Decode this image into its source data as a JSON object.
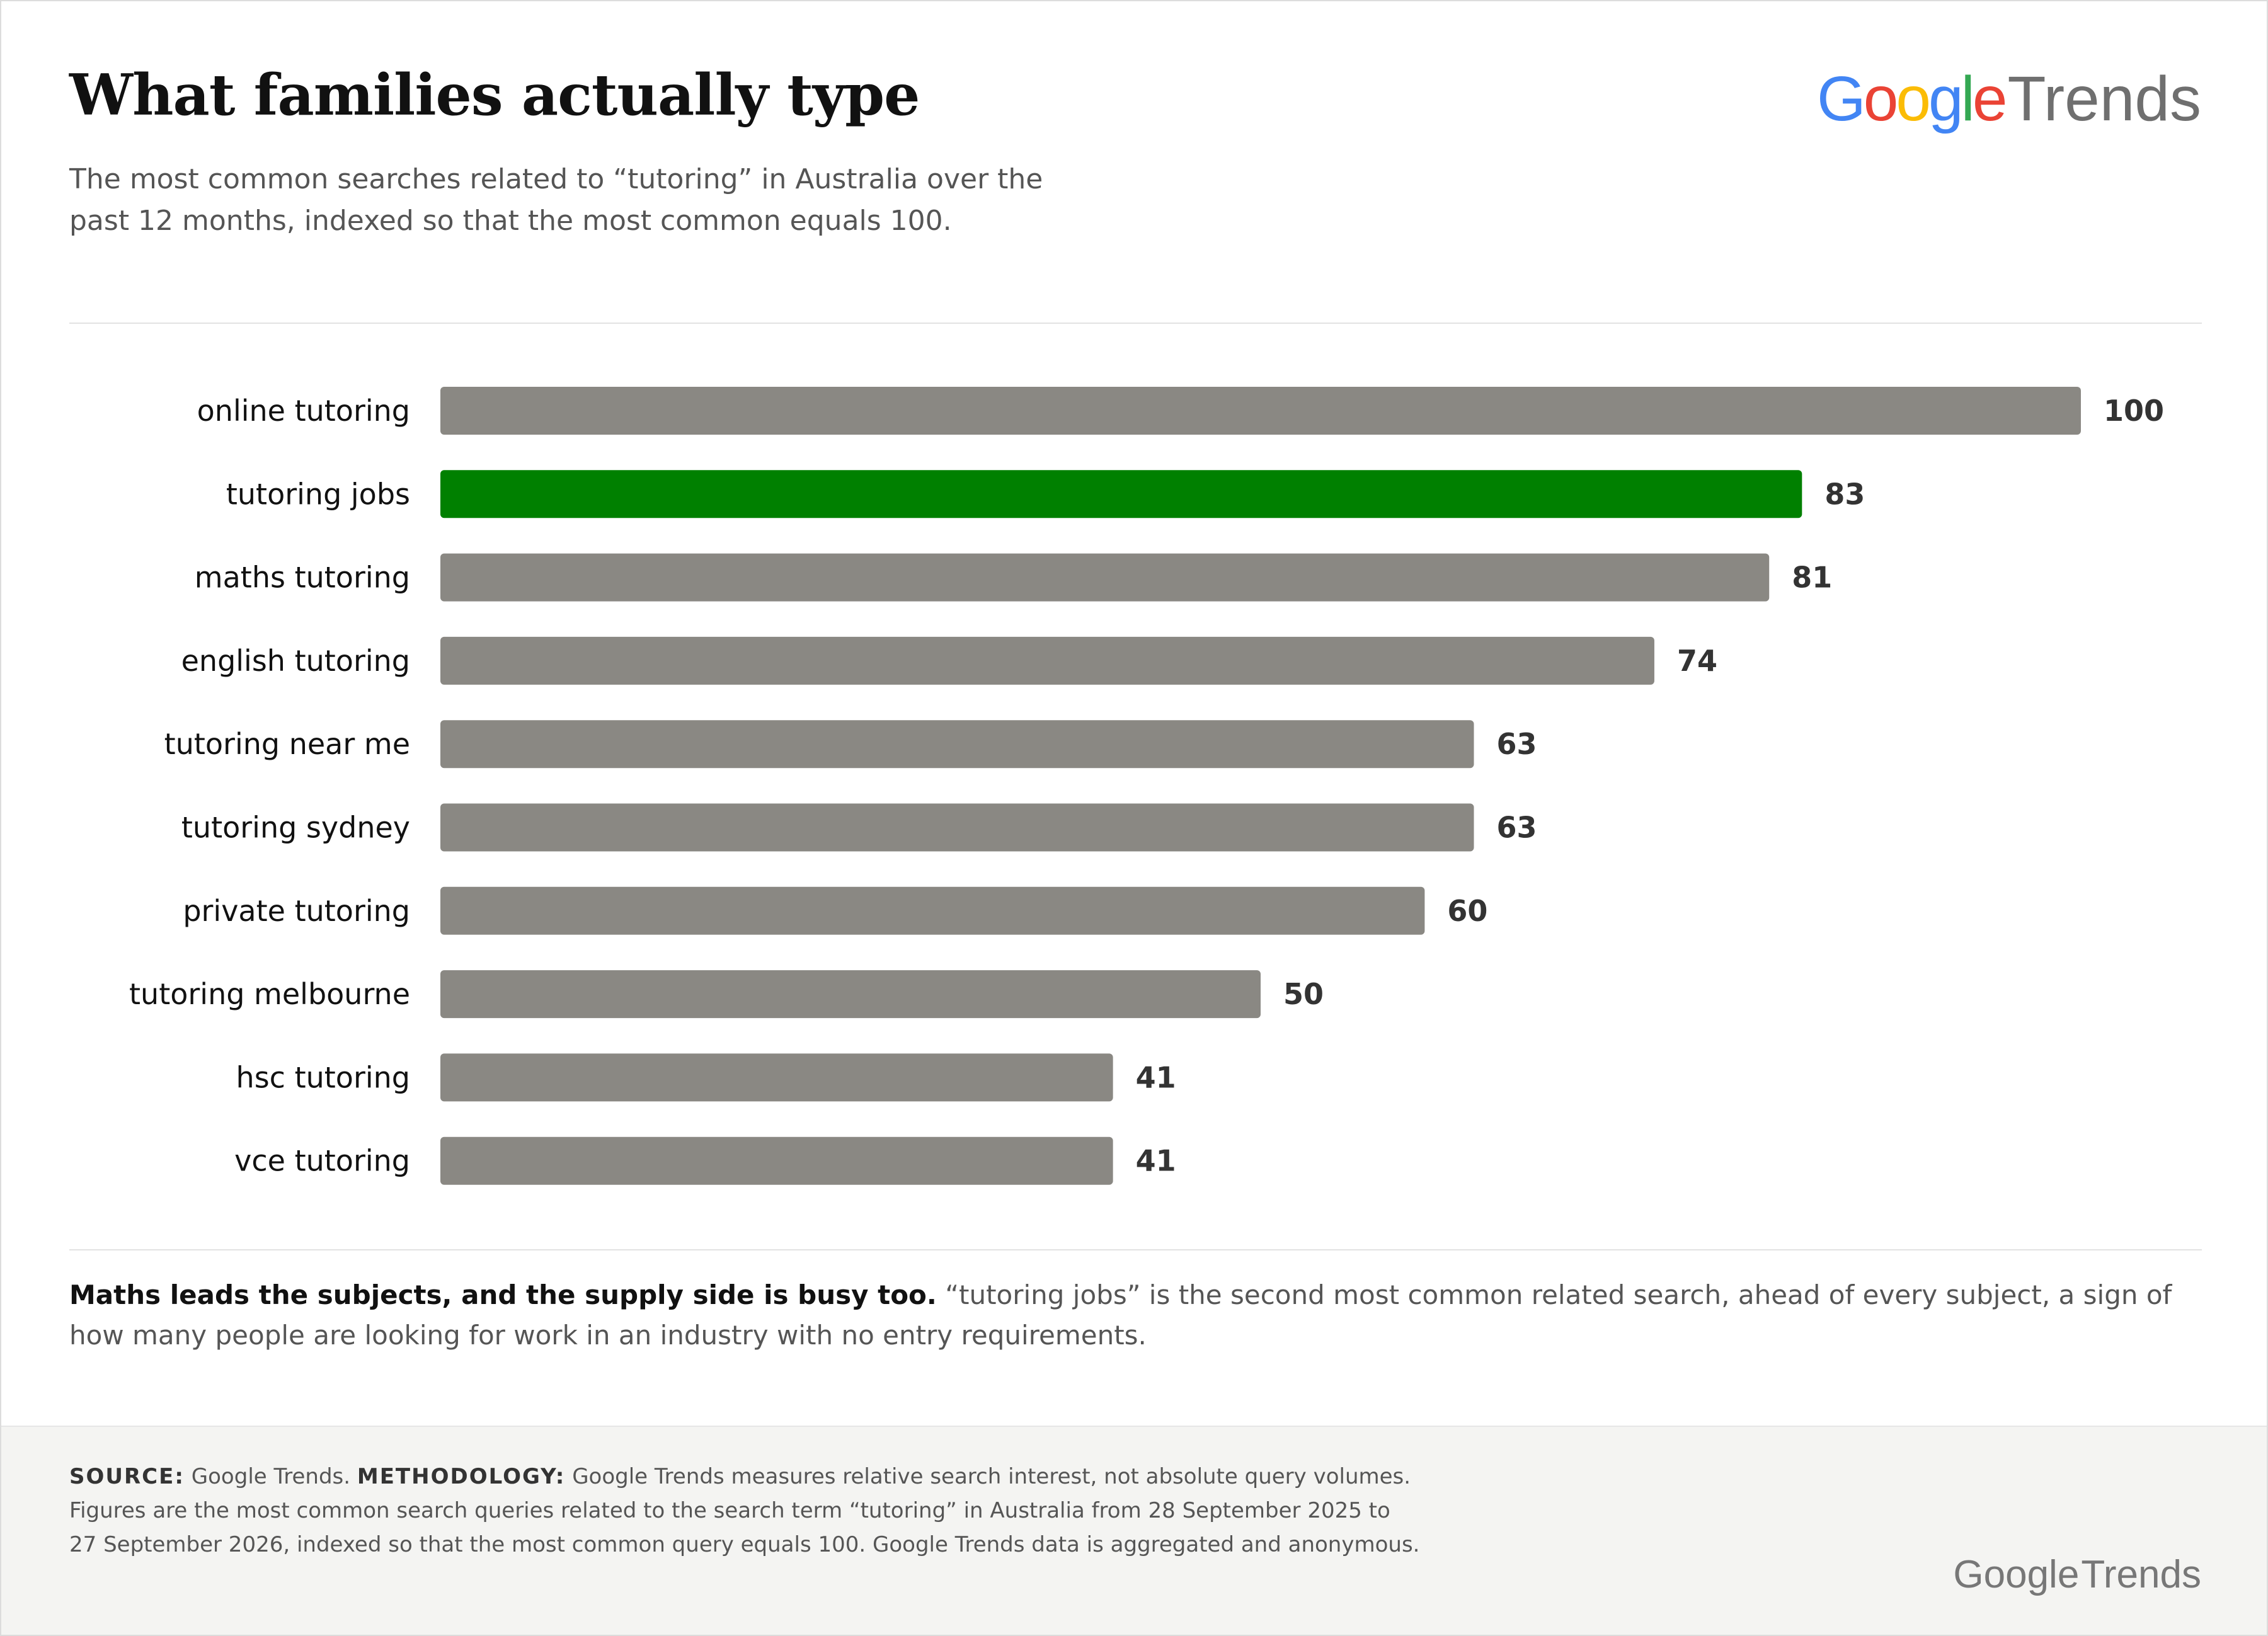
{
  "header": {
    "title": "What families actually type",
    "subtitle": "The most common searches related to “tutoring” in Australia over the past 12 months, indexed so that the most common equals 100.",
    "logo": {
      "word1": "Google",
      "word2": "Trends"
    }
  },
  "finding": {
    "lead": "Maths leads the subjects, and the supply side is busy too.",
    "body": "“tutoring jobs” is the second most common related search, ahead of every subject, a sign of how many people are looking for work in an industry with no entry requirements."
  },
  "footer": {
    "source_label": "SOURCE:",
    "source_text": "Google Trends.",
    "methodology_label": "METHODOLOGY:",
    "methodology_text": "Google Trends measures relative search interest, not absolute query volumes. Figures are the most common search queries related to the search term “tutoring” in Australia from 28 September 2025 to 27 September 2026, indexed so that the most common query equals 100. Google Trends data is aggregated and anonymous.",
    "logo_word1": "Google",
    "logo_word2": "Trends"
  },
  "colors": {
    "bar": "#8a8883",
    "highlight": "#008000",
    "label": "#111111",
    "value": "#333333",
    "google_blue": "#4285F4",
    "google_red": "#EA4335",
    "google_yellow": "#FBBC05",
    "google_green": "#34A853"
  },
  "chart_data": {
    "type": "bar",
    "orientation": "horizontal",
    "categories": [
      "online tutoring",
      "tutoring jobs",
      "maths tutoring",
      "english tutoring",
      "tutoring near me",
      "tutoring sydney",
      "private tutoring",
      "tutoring melbourne",
      "hsc tutoring",
      "vce tutoring"
    ],
    "values": [
      100,
      83,
      81,
      74,
      63,
      63,
      60,
      50,
      41,
      41
    ],
    "highlight": "tutoring jobs",
    "xlim": [
      0,
      100
    ],
    "grid": false,
    "legend": "none",
    "data_labels": true
  }
}
